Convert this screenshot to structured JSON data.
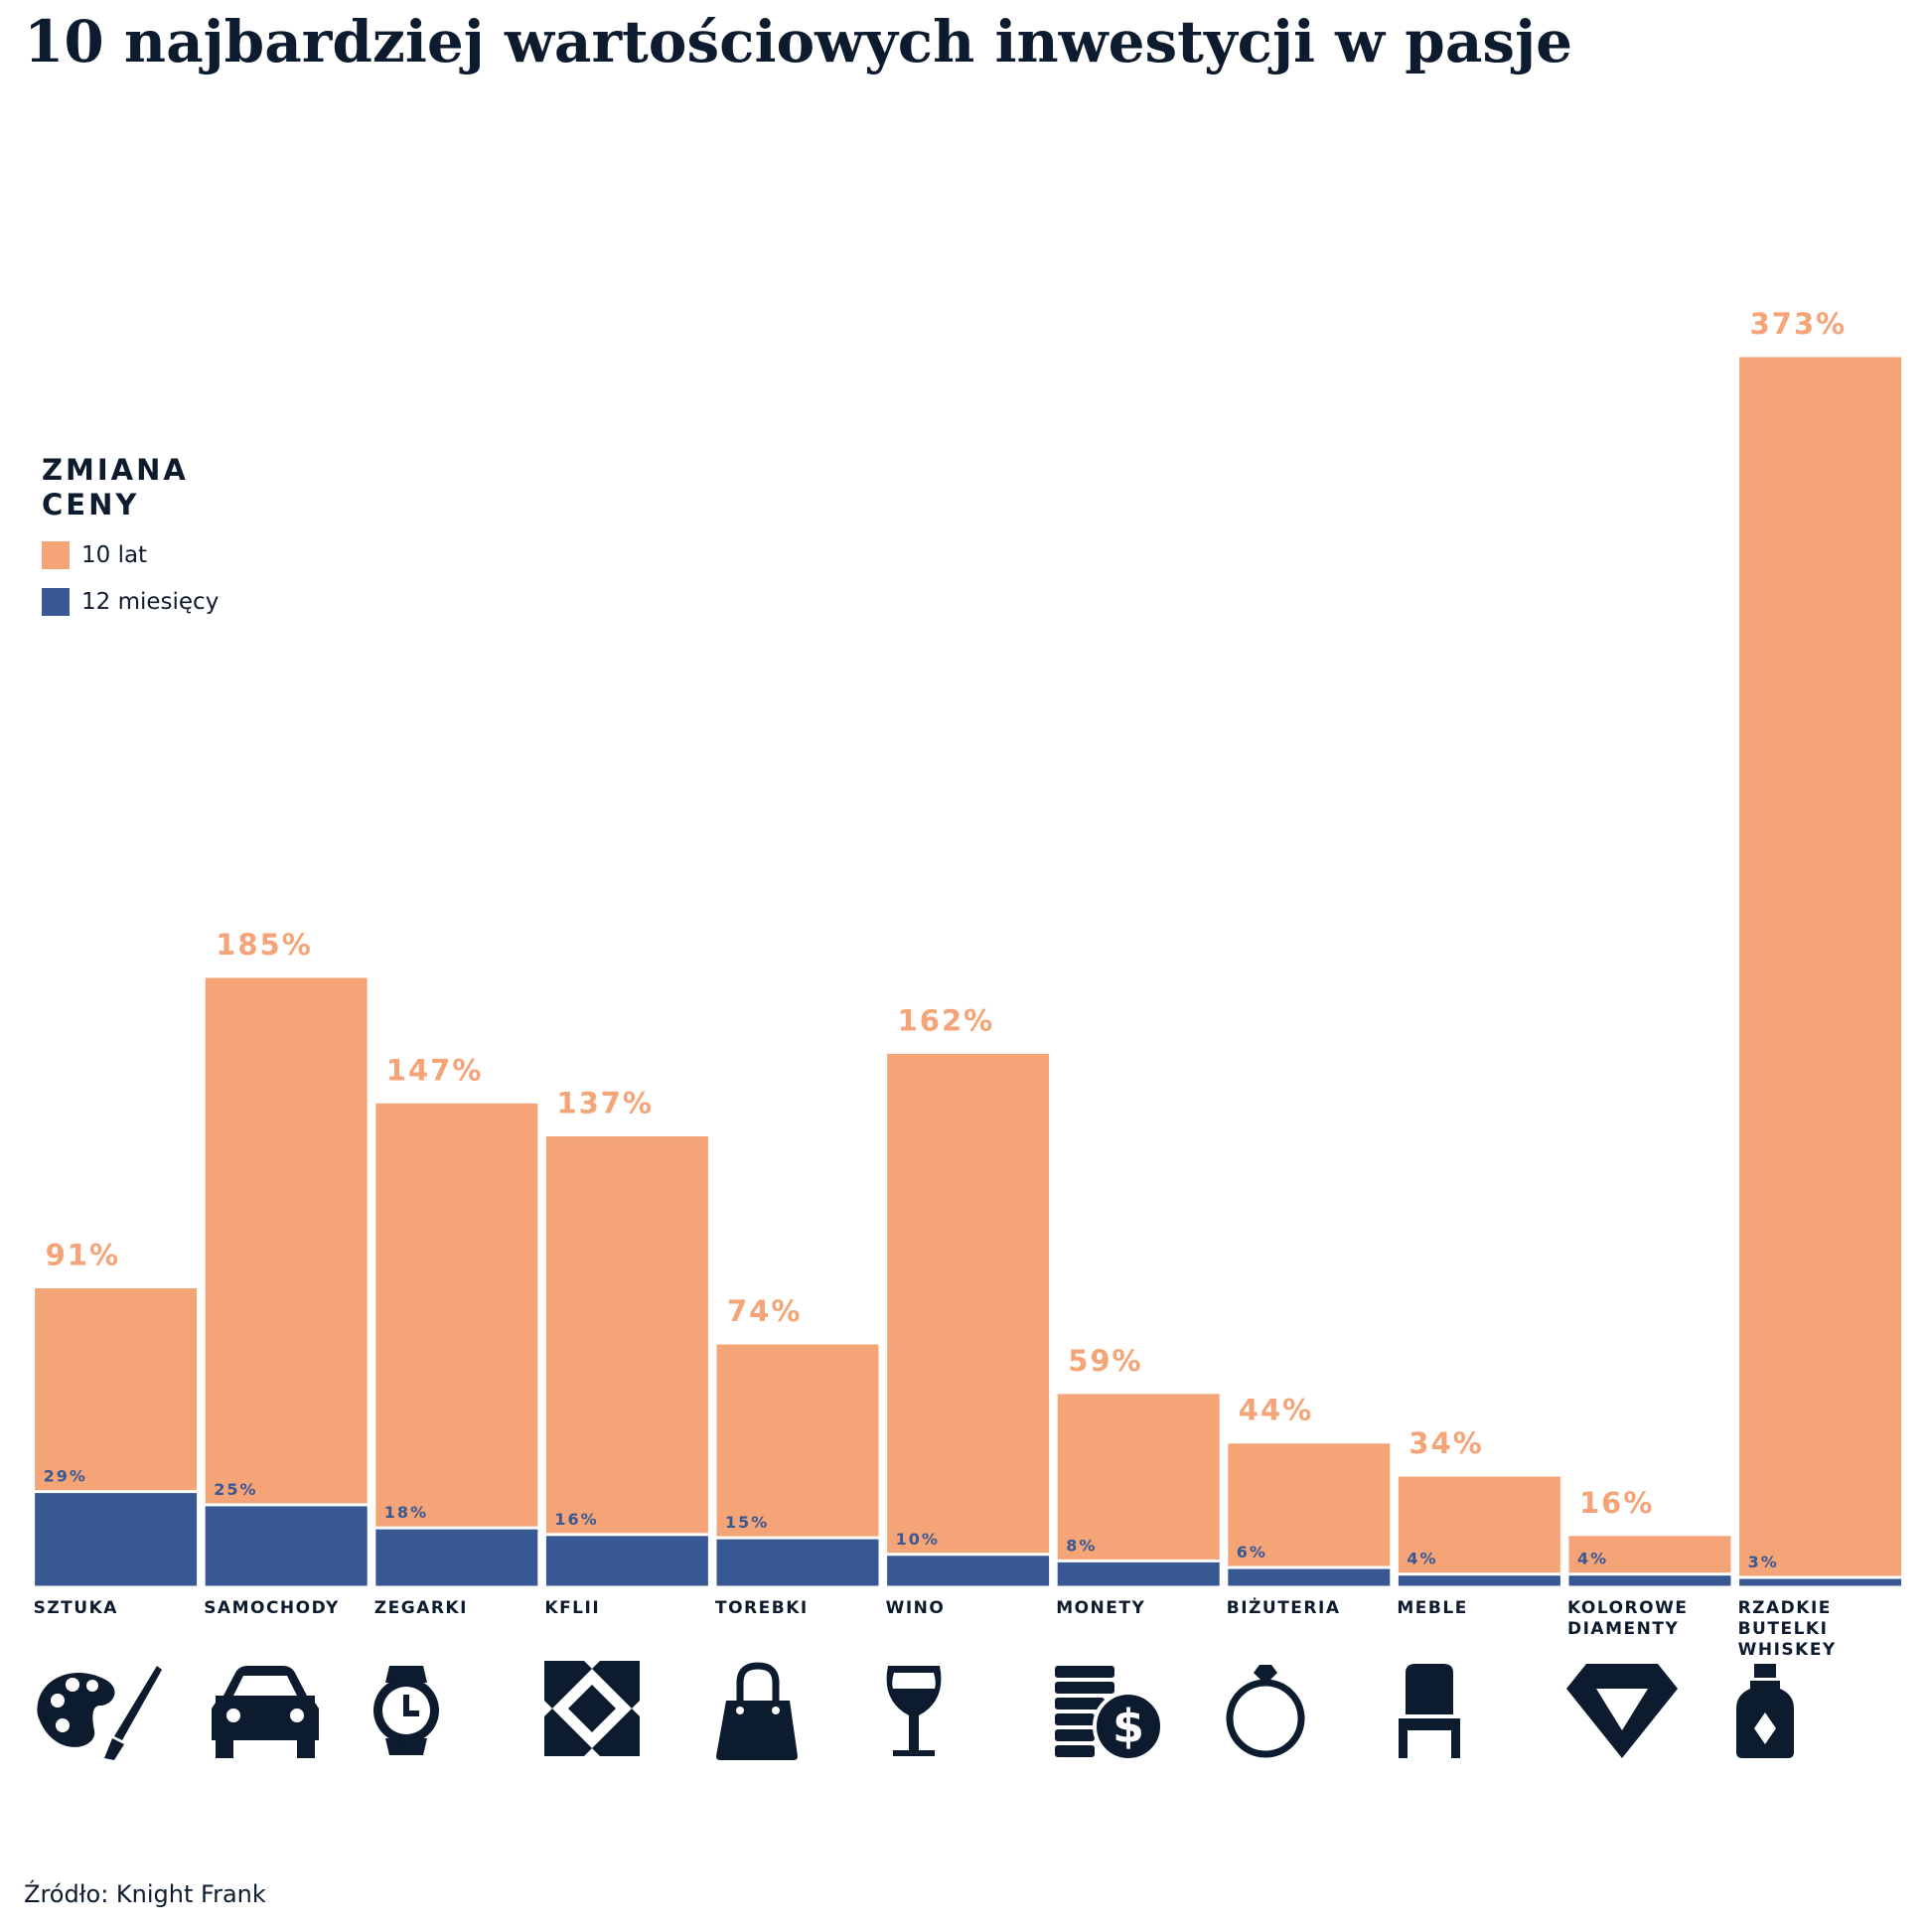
{
  "chart_data": {
    "type": "bar",
    "barmode": "overlay",
    "title": "10 najbardziej wartościowych inwestycji w pasje",
    "legend_title": "ZMIANA CENY",
    "categories": [
      "SZTUKA",
      "SAMOCHODY",
      "ZEGARKI",
      "KFLII",
      "TOREBKI",
      "WINO",
      "MONETY",
      "BIŻUTERIA",
      "MEBLE",
      "KOLOROWE DIAMENTY",
      "RZADKIE BUTELKI WHISKEY"
    ],
    "series": [
      {
        "name": "10 lat",
        "color": "#f4a477",
        "values": [
          91,
          185,
          147,
          137,
          74,
          162,
          59,
          44,
          34,
          16,
          373
        ],
        "value_labels": [
          "91%",
          "185%",
          "147%",
          "137%",
          "74%",
          "162%",
          "59%",
          "44%",
          "34%",
          "16%",
          "373%"
        ]
      },
      {
        "name": "12 miesięcy",
        "color": "#385894",
        "values": [
          29,
          25,
          18,
          16,
          15,
          10,
          8,
          6,
          4,
          4,
          3
        ],
        "value_labels": [
          "29%",
          "25%",
          "18%",
          "16%",
          "15%",
          "10%",
          "8%",
          "6%",
          "4%",
          "4%",
          "3%"
        ]
      }
    ],
    "source": "Źródło: Knight Frank"
  }
}
